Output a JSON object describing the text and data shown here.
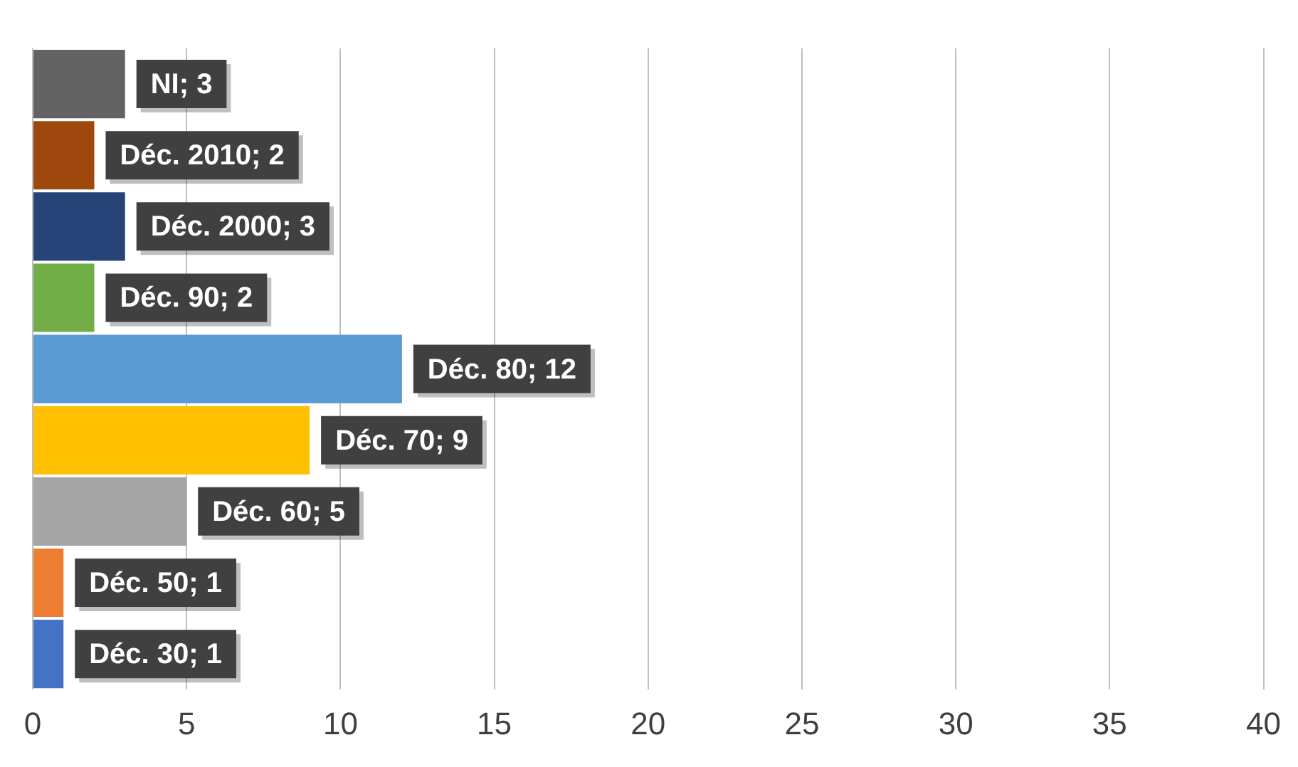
{
  "chart_data": {
    "type": "bar",
    "orientation": "horizontal",
    "categories": [
      null,
      null,
      null,
      null,
      null,
      null,
      null,
      null,
      null
    ],
    "values": [
      3,
      2,
      3,
      2,
      12,
      9,
      5,
      1,
      1
    ],
    "colors": [
      "#636363",
      "#9e480e",
      "#264478",
      "#70ad47",
      "#5b9bd5",
      "#ffc000",
      "#a5a5a5",
      "#ed7d31",
      "#4472c4"
    ],
    "value_labels": [
      "NI; 3",
      "Déc. 2010; 2",
      "Déc. 2000; 3",
      "Déc. 90; 2",
      "Déc. 80; 12",
      "Déc. 70; 9",
      "Déc. 60; 5",
      "Déc. 50; 1",
      "Déc. 30; 1"
    ],
    "xlim": [
      0,
      40
    ],
    "xticks": [
      0,
      5,
      10,
      15,
      20,
      25,
      30,
      35,
      40
    ],
    "grid": "x",
    "tick_labels": "x",
    "legend": false
  }
}
